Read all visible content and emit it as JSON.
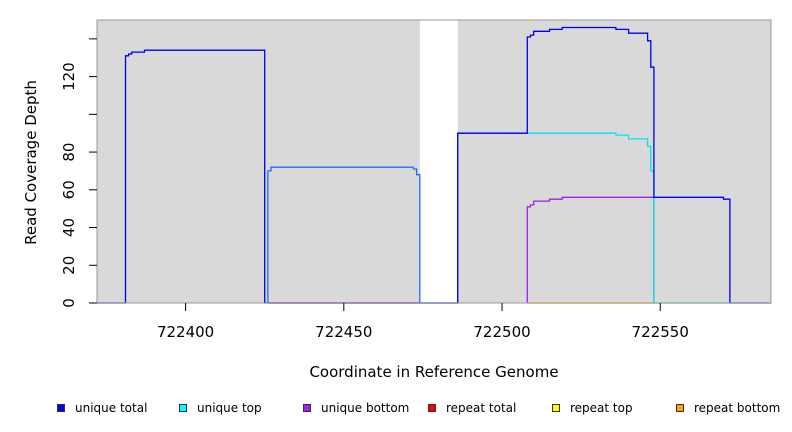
{
  "chart_data": {
    "type": "line",
    "title": "",
    "xlabel": "Coordinate in Reference Genome",
    "ylabel": "Read Coverage Depth",
    "xlim": [
      722372,
      722585
    ],
    "ylim": [
      0,
      150
    ],
    "xticks": [
      722400,
      722450,
      722500,
      722550
    ],
    "xtick_labels": [
      "722400",
      "722450",
      "722500",
      "722550"
    ],
    "yticks": [
      0,
      20,
      40,
      60,
      80,
      100,
      120,
      140
    ],
    "ytick_labels": [
      "0",
      "20",
      "40",
      "60",
      "80",
      "",
      "120",
      ""
    ],
    "grid": false,
    "legend_position": "bottom",
    "background": "#d9d9d9",
    "gap_region": [
      722474,
      722486
    ],
    "series": [
      {
        "name": "unique total",
        "color": "#0000ee",
        "values": [
          [
            722372,
            0
          ],
          [
            722381,
            0
          ],
          [
            722381,
            131
          ],
          [
            722382,
            131
          ],
          [
            722382,
            132
          ],
          [
            722383,
            132
          ],
          [
            722383,
            133
          ],
          [
            722387,
            133
          ],
          [
            722387,
            134
          ],
          [
            722425,
            134
          ],
          [
            722425,
            0
          ],
          [
            722486,
            0
          ],
          [
            722486,
            90
          ],
          [
            722508,
            90
          ],
          [
            722508,
            141
          ],
          [
            722509,
            141
          ],
          [
            722509,
            142
          ],
          [
            722510,
            142
          ],
          [
            722510,
            144
          ],
          [
            722515,
            144
          ],
          [
            722515,
            145
          ],
          [
            722519,
            145
          ],
          [
            722519,
            146
          ],
          [
            722536,
            146
          ],
          [
            722536,
            145
          ],
          [
            722540,
            145
          ],
          [
            722540,
            143
          ],
          [
            722546,
            143
          ],
          [
            722546,
            139
          ],
          [
            722547,
            139
          ],
          [
            722547,
            125
          ],
          [
            722548,
            125
          ],
          [
            722548,
            56
          ],
          [
            722570,
            56
          ],
          [
            722570,
            55
          ],
          [
            722572,
            55
          ],
          [
            722572,
            0
          ],
          [
            722585,
            0
          ]
        ]
      },
      {
        "name": "unique top",
        "color": "#00e5ee",
        "values": [
          [
            722486,
            90
          ],
          [
            722536,
            90
          ],
          [
            722536,
            89
          ],
          [
            722540,
            89
          ],
          [
            722540,
            87
          ],
          [
            722546,
            87
          ],
          [
            722546,
            83
          ],
          [
            722547,
            83
          ],
          [
            722547,
            70
          ],
          [
            722548,
            70
          ],
          [
            722548,
            0
          ],
          [
            722572,
            0
          ]
        ]
      },
      {
        "name": "unique bottom",
        "color": "#a020f0",
        "values": [
          [
            722508,
            0
          ],
          [
            722508,
            51
          ],
          [
            722509,
            51
          ],
          [
            722509,
            52
          ],
          [
            722510,
            52
          ],
          [
            722510,
            54
          ],
          [
            722515,
            54
          ],
          [
            722515,
            55
          ],
          [
            722519,
            55
          ],
          [
            722519,
            56
          ],
          [
            722548,
            56
          ],
          [
            722548,
            0
          ]
        ]
      },
      {
        "name": "repeat total",
        "color": "#ee0000",
        "values": [
          [
            722426,
            0
          ],
          [
            722474,
            0
          ]
        ]
      },
      {
        "name": "repeat top",
        "color": "#eeee00",
        "values": [
          [
            722508,
            0
          ],
          [
            722548,
            0
          ]
        ]
      },
      {
        "name": "repeat bottom",
        "color": "#ffa500",
        "values": [
          [
            722508,
            0
          ],
          [
            722548,
            0
          ]
        ]
      },
      {
        "name": "unique total (segment 2)",
        "color": "#1e6cff",
        "values": [
          [
            722426,
            0
          ],
          [
            722426,
            70
          ],
          [
            722427,
            70
          ],
          [
            722427,
            72
          ],
          [
            722472,
            72
          ],
          [
            722472,
            71
          ],
          [
            722473,
            71
          ],
          [
            722473,
            68
          ],
          [
            722474,
            68
          ],
          [
            722474,
            0
          ],
          [
            722486,
            0
          ],
          [
            722486,
            90
          ],
          [
            722508,
            90
          ]
        ]
      }
    ]
  },
  "legend": {
    "items": [
      {
        "label": "unique total",
        "color": "#0000ee"
      },
      {
        "label": "unique top",
        "color": "#00ffff"
      },
      {
        "label": "unique bottom",
        "color": "#a020f0"
      },
      {
        "label": "repeat total",
        "color": "#ff0000"
      },
      {
        "label": "repeat top",
        "color": "#ffff00"
      },
      {
        "label": "repeat bottom",
        "color": "#ffa500"
      }
    ]
  }
}
